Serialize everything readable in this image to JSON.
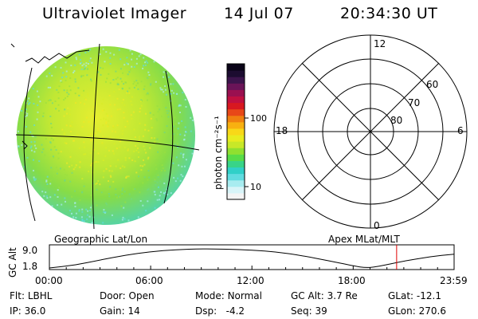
{
  "header": {
    "instrument": "Ultraviolet Imager",
    "date": "14 Jul 07",
    "time": "20:34:30 UT"
  },
  "colorbar": {
    "label": "photon cm⁻²s⁻¹",
    "tick_labels": [
      "100",
      "10"
    ],
    "colors": [
      "#f4f4f4",
      "#d8f4f8",
      "#a8ecf0",
      "#60dce0",
      "#30d0c8",
      "#38d488",
      "#58dc48",
      "#90e030",
      "#c8e828",
      "#e8ec20",
      "#f8d818",
      "#f8b010",
      "#f08010",
      "#e84818",
      "#d81820",
      "#c01040",
      "#9a1050",
      "#6a1458",
      "#3c144c",
      "#1c0c30",
      "#0a0418"
    ]
  },
  "geo_panel": {
    "label": "Geographic Lat/Lon"
  },
  "apex_panel": {
    "label": "Apex MLat/MLT",
    "mlt_labels": {
      "top": "12",
      "bottom": "0",
      "left": "18",
      "right": "6"
    },
    "lat_labels": [
      "60",
      "70",
      "80"
    ]
  },
  "altitude_plot": {
    "ylabel": "GC Alt",
    "y_ticks": [
      "9.0",
      "1.8"
    ],
    "x_ticks": [
      "00:00",
      "06:00",
      "12:00",
      "18:00",
      "23:59"
    ],
    "current_time_marker_color": "#e00000",
    "chart_data": {
      "type": "line",
      "xlabel": "",
      "ylabel": "GC Alt",
      "x_hours": [
        0,
        1.5,
        3,
        4.5,
        6,
        7.5,
        9,
        10.5,
        12,
        13.5,
        15,
        16.5,
        18,
        18.8,
        19.5,
        21,
        22.5,
        23.98
      ],
      "y_values": [
        1.8,
        2.8,
        4.8,
        6.6,
        7.9,
        8.7,
        9.0,
        8.9,
        8.5,
        7.8,
        6.4,
        4.6,
        2.6,
        1.8,
        2.4,
        4.4,
        6.0,
        7.0
      ],
      "ylim": [
        1.8,
        9.0
      ],
      "xlim": [
        0,
        23.98
      ],
      "current_time_hours": 20.575
    }
  },
  "status": {
    "row1": [
      {
        "key": "Flt:",
        "value": "LBHL"
      },
      {
        "key": "Door:",
        "value": "Open"
      },
      {
        "key": "Mode:",
        "value": "Normal"
      },
      {
        "key": "GC Alt:",
        "value": "3.7 Re"
      },
      {
        "key": "GLat:",
        "value": "-12.1"
      }
    ],
    "row2": [
      {
        "key": "IP:",
        "value": "36.0"
      },
      {
        "key": "Gain:",
        "value": "14"
      },
      {
        "key": "Dsp:",
        "value": "-4.2"
      },
      {
        "key": "Seq:",
        "value": "39"
      },
      {
        "key": "GLon:",
        "value": "270.6"
      }
    ]
  }
}
